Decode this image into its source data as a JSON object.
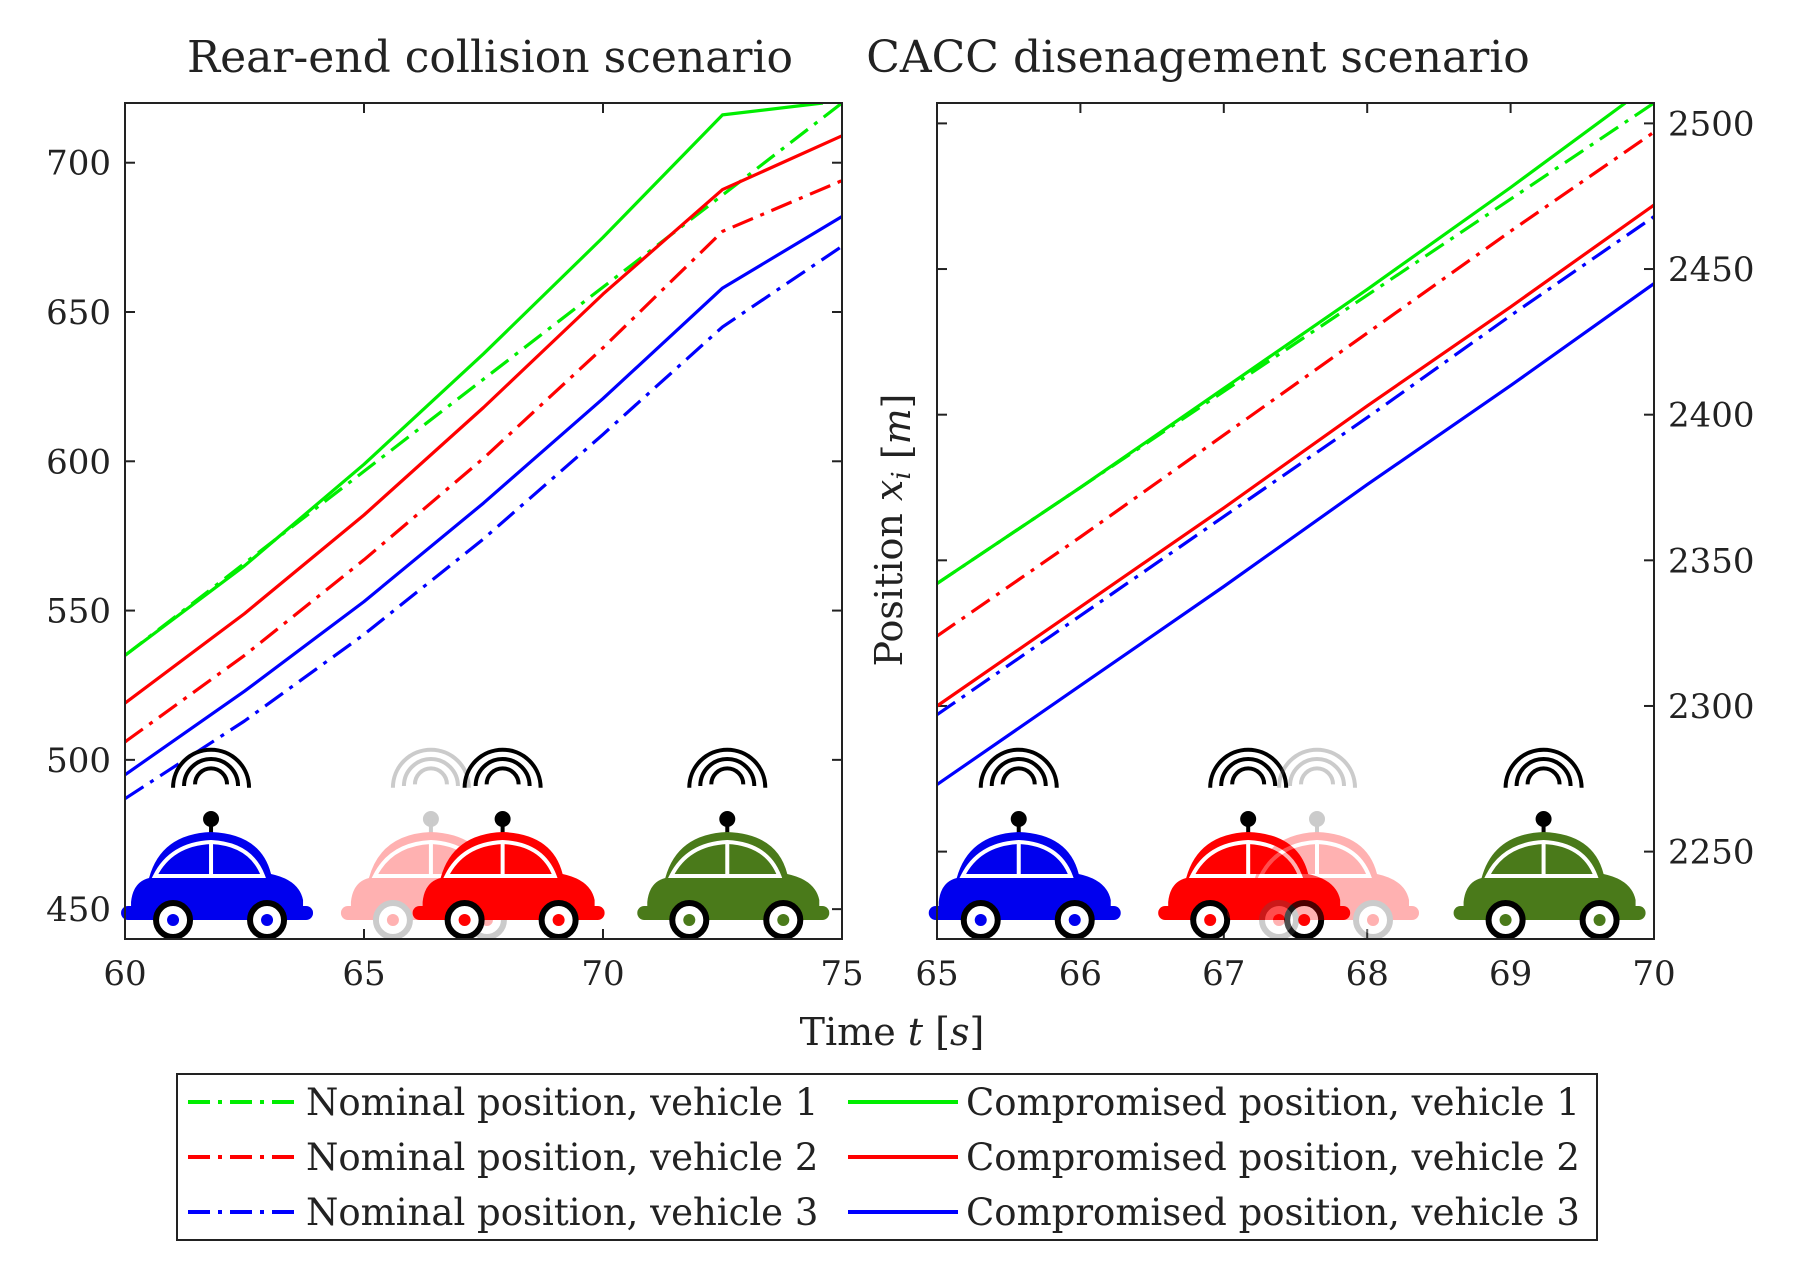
{
  "chart_data": [
    {
      "type": "line",
      "title": "Rear-end collision scenario",
      "xlabel": "",
      "ylabel": "",
      "xlim": [
        60,
        75
      ],
      "ylim": [
        440,
        720
      ],
      "xticks": [
        "60",
        "65",
        "70",
        "75"
      ],
      "yticks": [
        "450",
        "500",
        "550",
        "600",
        "650",
        "700"
      ],
      "series": [
        {
          "name": "Nominal position, vehicle 1",
          "style": "dashdot",
          "color": "#00ee00",
          "x": [
            60,
            75
          ],
          "y": [
            535,
            720
          ]
        },
        {
          "name": "Compromised position, vehicle 1",
          "style": "solid",
          "color": "#00ee00",
          "x": [
            60,
            62.5,
            65,
            67.5,
            70,
            72.5,
            74.6
          ],
          "y": [
            535,
            565,
            599,
            636,
            675,
            716,
            720
          ]
        },
        {
          "name": "Nominal position, vehicle 2",
          "style": "dashdot",
          "color": "#ff0000",
          "x": [
            60,
            62.5,
            65,
            67.5,
            70,
            72.5,
            75
          ],
          "y": [
            506,
            535,
            567,
            601,
            638,
            677,
            694
          ]
        },
        {
          "name": "Compromised position, vehicle 2",
          "style": "solid",
          "color": "#ff0000",
          "x": [
            60,
            62.5,
            65,
            67.5,
            70,
            72.5,
            75
          ],
          "y": [
            519,
            549,
            582,
            618,
            656,
            691,
            709
          ]
        },
        {
          "name": "Nominal position, vehicle 3",
          "style": "dashdot",
          "color": "#0000ff",
          "x": [
            60,
            62.5,
            65,
            67.5,
            70,
            72.5,
            75
          ],
          "y": [
            487,
            513,
            542,
            574,
            609,
            645,
            672
          ]
        },
        {
          "name": "Compromised position, vehicle 3",
          "style": "solid",
          "color": "#0000ff",
          "x": [
            60,
            62.5,
            65,
            67.5,
            70,
            72.5,
            75
          ],
          "y": [
            495,
            523,
            553,
            586,
            621,
            658,
            682
          ]
        }
      ]
    },
    {
      "type": "line",
      "title": "CACC disenagement scenario",
      "xlabel": "",
      "ylabel": "Position x_i [m]",
      "xlim": [
        65,
        70
      ],
      "ylim": [
        2220,
        2507
      ],
      "xticks": [
        "65",
        "66",
        "67",
        "68",
        "69",
        "70"
      ],
      "yticks": [
        "2250",
        "2300",
        "2350",
        "2400",
        "2450",
        "2500"
      ],
      "series": [
        {
          "name": "Nominal position, vehicle 1",
          "style": "dashdot",
          "color": "#00ee00",
          "x": [
            65,
            70
          ],
          "y": [
            2342,
            2507
          ]
        },
        {
          "name": "Compromised position, vehicle 1",
          "style": "solid",
          "color": "#00ee00",
          "x": [
            65,
            66,
            67,
            68,
            69,
            69.8
          ],
          "y": [
            2342,
            2375,
            2409,
            2443,
            2478,
            2507
          ]
        },
        {
          "name": "Nominal position, vehicle 2",
          "style": "dashdot",
          "color": "#ff0000",
          "x": [
            65,
            66,
            67,
            68,
            69,
            70
          ],
          "y": [
            2324,
            2358,
            2393,
            2428,
            2463,
            2497
          ]
        },
        {
          "name": "Compromised position, vehicle 2",
          "style": "solid",
          "color": "#ff0000",
          "x": [
            65,
            66,
            67,
            68,
            69,
            70
          ],
          "y": [
            2300,
            2334,
            2368,
            2403,
            2437,
            2472
          ]
        },
        {
          "name": "Nominal position, vehicle 3",
          "style": "dashdot",
          "color": "#0000ff",
          "x": [
            65,
            66,
            67,
            68,
            69,
            70
          ],
          "y": [
            2297,
            2331,
            2365,
            2399,
            2434,
            2468
          ]
        },
        {
          "name": "Compromised position, vehicle 3",
          "style": "solid",
          "color": "#0000ff",
          "x": [
            65,
            66,
            67,
            68,
            69,
            70
          ],
          "y": [
            2273,
            2307,
            2341,
            2376,
            2410,
            2445
          ]
        }
      ]
    }
  ],
  "shared_xlabel": "Time t [s]",
  "legend": {
    "entries": [
      {
        "label": "Nominal position, vehicle 1",
        "style": "dashdot",
        "color": "#00ee00"
      },
      {
        "label": "Compromised position, vehicle 1",
        "style": "solid",
        "color": "#00ee00"
      },
      {
        "label": "Nominal position, vehicle 2",
        "style": "dashdot",
        "color": "#ff0000"
      },
      {
        "label": "Compromised position, vehicle 2",
        "style": "solid",
        "color": "#ff0000"
      },
      {
        "label": "Nominal position, vehicle 3",
        "style": "dashdot",
        "color": "#0000ff"
      },
      {
        "label": "Compromised position, vehicle 3",
        "style": "solid",
        "color": "#0000ff"
      }
    ]
  },
  "car_illustrations": [
    {
      "panel": 0,
      "color": "#0000ee",
      "faded": false,
      "x_data": 61.8
    },
    {
      "panel": 0,
      "color": "#ff0000",
      "faded": true,
      "x_data": 66.4
    },
    {
      "panel": 0,
      "color": "#ff0000",
      "faded": false,
      "x_data": 67.9
    },
    {
      "panel": 0,
      "color": "#4a7a1a",
      "faded": false,
      "x_data": 72.6
    },
    {
      "panel": 1,
      "color": "#0000ee",
      "faded": false,
      "x_data": 65.57
    },
    {
      "panel": 1,
      "color": "#ff0000",
      "faded": false,
      "x_data": 67.17
    },
    {
      "panel": 1,
      "color": "#ff0000",
      "faded": true,
      "x_data": 67.65
    },
    {
      "panel": 1,
      "color": "#4a7a1a",
      "faded": false,
      "x_data": 69.23
    }
  ],
  "colors": {
    "green": "#00ee00",
    "red": "#ff0000",
    "blue": "#0000ff",
    "axis": "#222222"
  }
}
